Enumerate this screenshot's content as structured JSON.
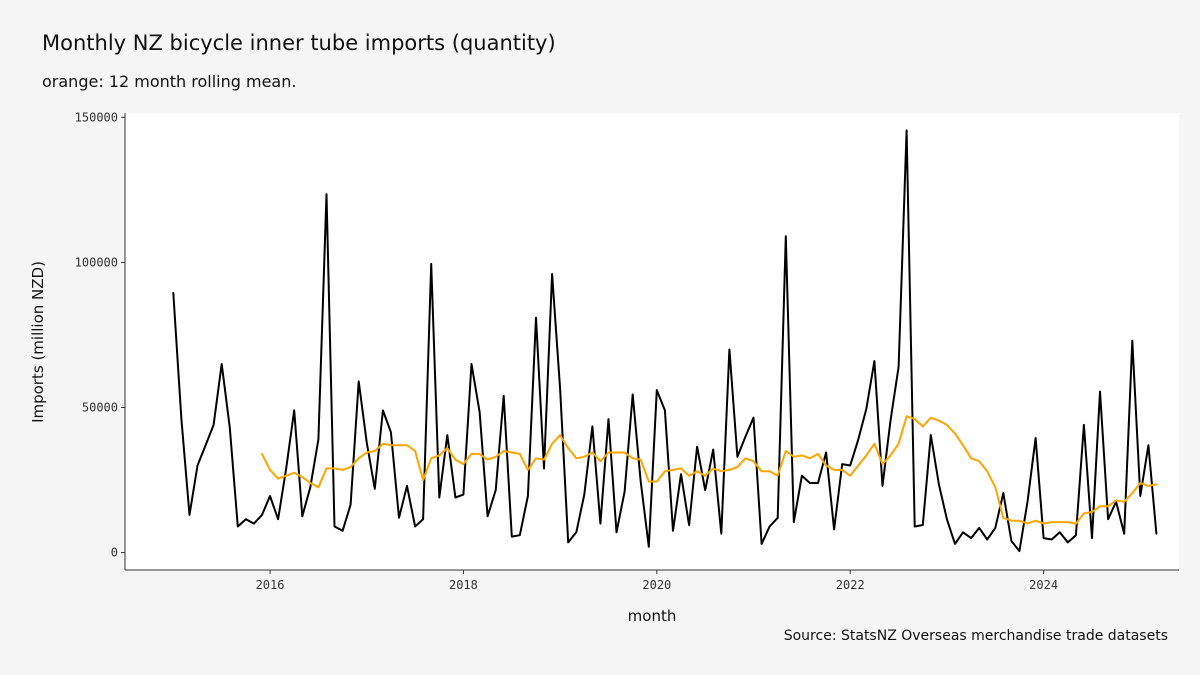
{
  "title": "Monthly NZ bicycle inner tube imports (quantity)",
  "subtitle": "orange: 12 month rolling mean.",
  "caption": "Source: StatsNZ Overseas merchandise trade datasets",
  "colors": {
    "background": "#f5f5f5",
    "panel": "#ffffff",
    "series_raw": "#000000",
    "series_rolling": "#ffa500"
  },
  "chart_data": {
    "type": "line",
    "xlabel": "month",
    "ylabel": "Imports (million NZD)",
    "xlim": [
      2014.5,
      2025.4
    ],
    "ylim": [
      -6000,
      151500
    ],
    "x_ticks": [
      2016,
      2018,
      2020,
      2022,
      2024
    ],
    "x_tick_labels": [
      "2016",
      "2018",
      "2020",
      "2022",
      "2024"
    ],
    "y_ticks": [
      0,
      50000,
      100000,
      150000
    ],
    "y_tick_labels": [
      "0",
      "50000",
      "100000",
      "150000"
    ],
    "grid": false,
    "start": "2015-01",
    "series": [
      {
        "color": "#000000",
        "values": [
          89500,
          46000,
          13000,
          30000,
          37000,
          44000,
          65000,
          43000,
          9000,
          11500,
          10000,
          13000,
          19500,
          11500,
          29000,
          49000,
          12500,
          22500,
          39000,
          123500,
          9000,
          7500,
          16500,
          59000,
          38000,
          22000,
          49000,
          41500,
          12000,
          23000,
          9000,
          11500,
          99500,
          19000,
          40500,
          19000,
          20000,
          65000,
          48500,
          12500,
          21500,
          54000,
          5500,
          6000,
          19500,
          81000,
          29000,
          96000,
          56500,
          3500,
          7000,
          20000,
          43500,
          10000,
          46000,
          7000,
          21000,
          54500,
          24500,
          2000,
          56000,
          49000,
          7500,
          27000,
          9500,
          36500,
          21500,
          35500,
          6500,
          70000,
          33000,
          40000,
          46500,
          3000,
          9000,
          12000,
          109000,
          10500,
          26500,
          24000,
          24000,
          34500,
          8000,
          30500,
          30000,
          39000,
          49500,
          66000,
          23000,
          45500,
          64000,
          145500,
          9000,
          9500,
          40500,
          23500,
          11500,
          3000,
          7000,
          5000,
          8500,
          4500,
          8500,
          20500,
          4000,
          500,
          17500,
          39500,
          5000,
          4500,
          7000,
          3500,
          6000,
          44000,
          5000,
          55500,
          11500,
          17500,
          6500,
          73000,
          19500,
          37000,
          6500
        ]
      },
      {
        "color": "#ffa500",
        "start": "2015-12",
        "values": [
          34000,
          28500,
          25500,
          26500,
          27500,
          26000,
          24000,
          22500,
          29000,
          29000,
          28500,
          29500,
          32500,
          34500,
          35000,
          37500,
          37000,
          37000,
          37000,
          35000,
          25000,
          32500,
          33500,
          36000,
          32000,
          30500,
          34000,
          34000,
          32000,
          33000,
          35000,
          34500,
          34000,
          28500,
          32500,
          32000,
          37500,
          40500,
          36000,
          32500,
          33000,
          34500,
          31500,
          34500,
          34500,
          34500,
          32500,
          32000,
          24500,
          24500,
          28000,
          28500,
          29000,
          26500,
          28000,
          26500,
          29000,
          28000,
          28500,
          29500,
          32500,
          31500,
          28000,
          28000,
          26500,
          35000,
          33000,
          33500,
          32500,
          34000,
          30000,
          28500,
          28500,
          26500,
          30000,
          33500,
          37500,
          30500,
          33500,
          37500,
          47000,
          46000,
          43500,
          46500,
          45500,
          44000,
          41000,
          37000,
          32500,
          31500,
          28000,
          22500,
          12000,
          11000,
          11000,
          10000,
          11000,
          10000,
          10500,
          10500,
          10500,
          10000,
          13500,
          14000,
          16000,
          16000,
          18000,
          17500,
          20500,
          24000,
          23000,
          23500
        ]
      }
    ]
  }
}
